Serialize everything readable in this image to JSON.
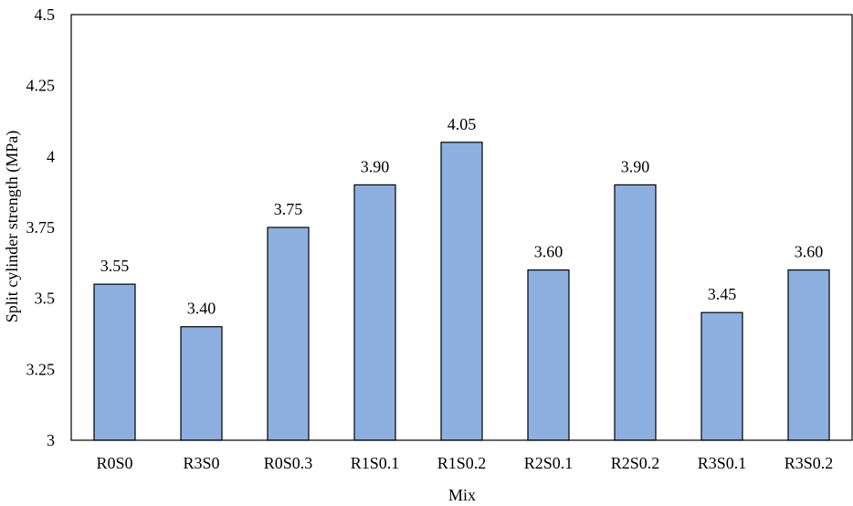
{
  "chart_data": {
    "type": "bar",
    "categories": [
      "R0S0",
      "R3S0",
      "R0S0.3",
      "R1S0.1",
      "R1S0.2",
      "R2S0.1",
      "R2S0.2",
      "R3S0.1",
      "R3S0.2"
    ],
    "values": [
      3.55,
      3.4,
      3.75,
      3.9,
      4.05,
      3.6,
      3.9,
      3.45,
      3.6
    ],
    "data_labels": [
      "3.55",
      "3.40",
      "3.75",
      "3.90",
      "4.05",
      "3.60",
      "3.90",
      "3.45",
      "3.60"
    ],
    "title": "",
    "xlabel": "Mix",
    "ylabel": "Split cylinder strength (MPa)",
    "ylim": [
      3,
      4.5
    ],
    "yticks": [
      3,
      3.25,
      3.5,
      3.75,
      4,
      4.25,
      4.5
    ],
    "ytick_labels": [
      "3",
      "3.25",
      "3.5",
      "3.75",
      "4",
      "4.25",
      "4.5"
    ],
    "grid": false,
    "legend": "none",
    "colors": {
      "bar_fill": "#8db0e0",
      "bar_stroke": "#000000",
      "axis": "#000000"
    }
  }
}
